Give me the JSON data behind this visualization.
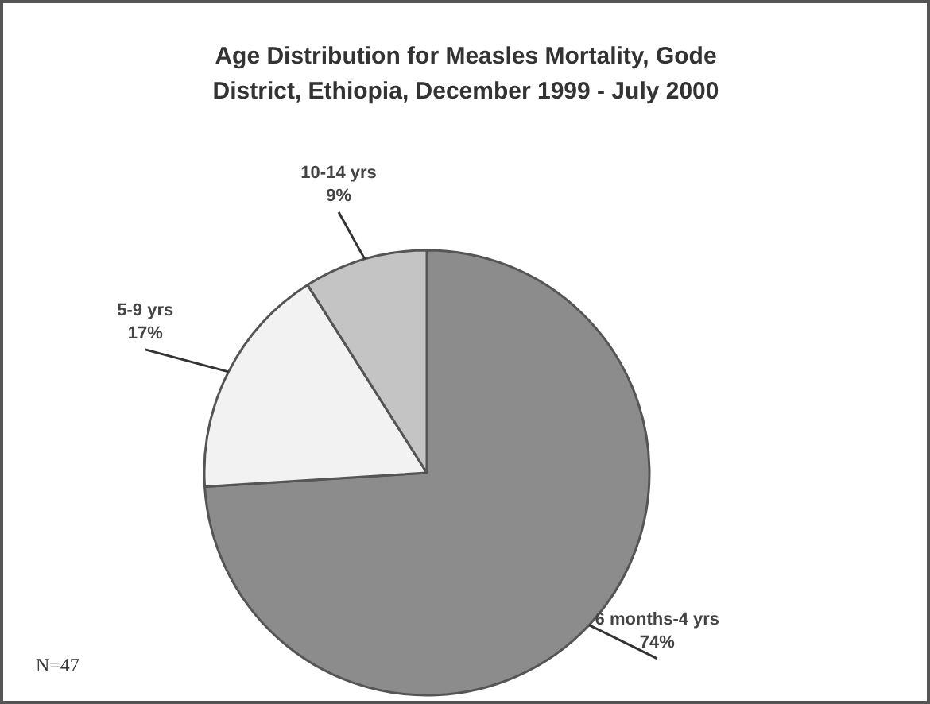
{
  "chart_data": {
    "type": "pie",
    "title": "Age Distribution for Measles Mortality, Gode District, Ethiopia, December 1999 - July 2000",
    "categories": [
      "6 months-4 yrs",
      "5-9 yrs",
      "10-14 yrs"
    ],
    "values": [
      74,
      17,
      9
    ],
    "colors": [
      "#8c8c8c",
      "#f2f2f2",
      "#c4c4c4"
    ],
    "value_labels": [
      "74%",
      "17%",
      "9%"
    ],
    "annotations": [
      "N=47"
    ]
  }
}
